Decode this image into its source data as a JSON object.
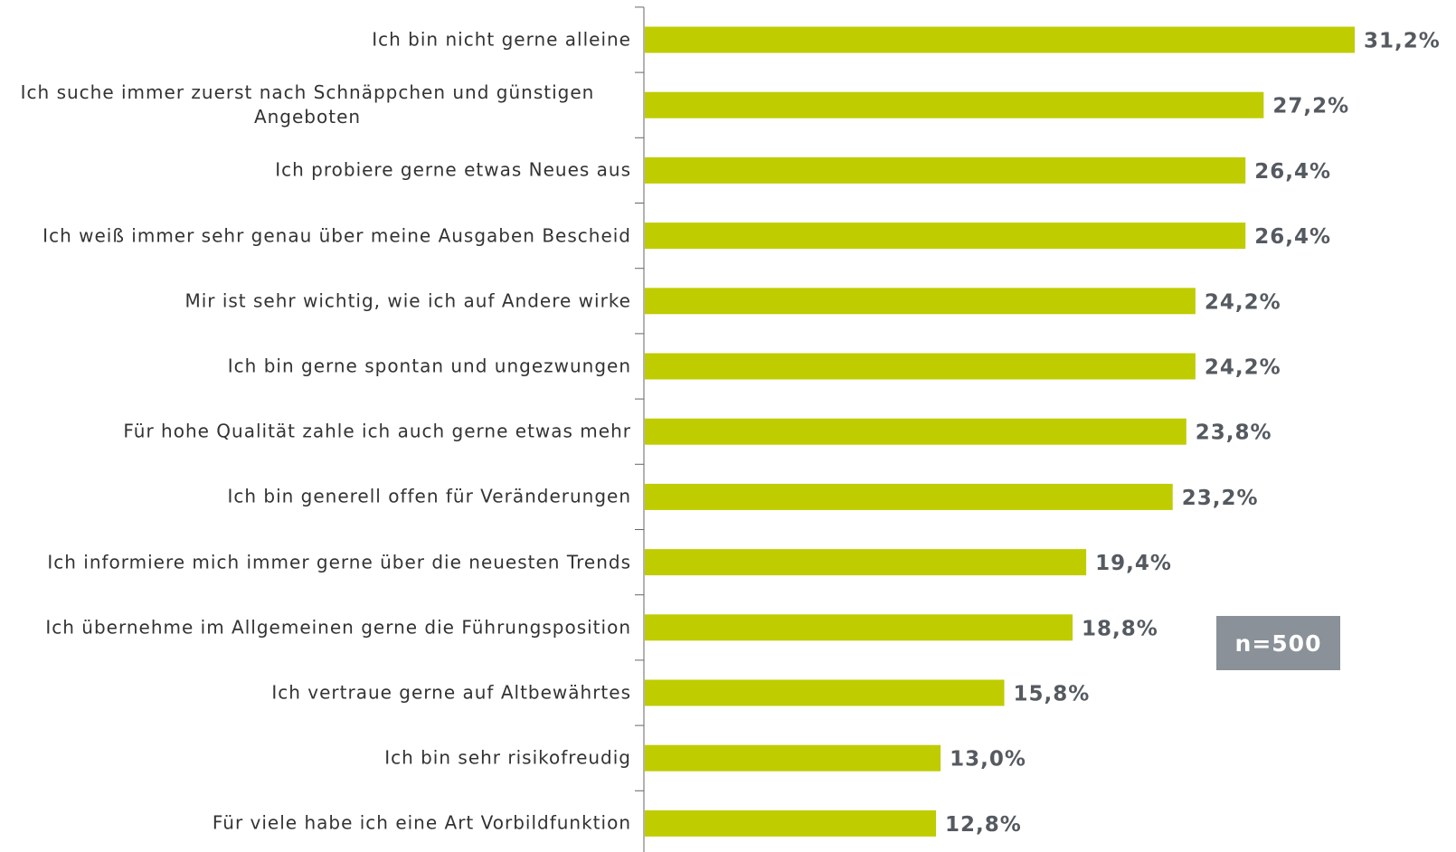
{
  "chart_data": {
    "type": "bar",
    "orientation": "horizontal",
    "categories": [
      "Ich bin nicht gerne alleine",
      "Ich suche immer zuerst nach Schnäppchen und günstigen Angeboten",
      "Ich probiere gerne etwas Neues aus",
      "Ich weiß immer sehr genau über meine Ausgaben Bescheid",
      "Mir ist sehr wichtig, wie ich auf Andere wirke",
      "Ich bin gerne spontan und ungezwungen",
      "Für hohe Qualität zahle ich auch gerne etwas mehr",
      "Ich bin generell offen für Veränderungen",
      "Ich informiere mich immer gerne über die neuesten Trends",
      "Ich übernehme im Allgemeinen gerne die Führungsposition",
      "Ich vertraue gerne auf Altbewährtes",
      "Ich bin sehr risikofreudig",
      "Für viele habe ich eine Art Vorbildfunktion"
    ],
    "values": [
      31.2,
      27.2,
      26.4,
      26.4,
      24.2,
      24.2,
      23.8,
      23.2,
      19.4,
      18.8,
      15.8,
      13.0,
      12.8
    ],
    "value_labels": [
      "31,2%",
      "27,2%",
      "26,4%",
      "26,4%",
      "24,2%",
      "24,2%",
      "23,8%",
      "23,2%",
      "19,4%",
      "18,8%",
      "15,8%",
      "13,0%",
      "12,8%"
    ],
    "color": "#bfcc00",
    "annotation": "n=500"
  }
}
